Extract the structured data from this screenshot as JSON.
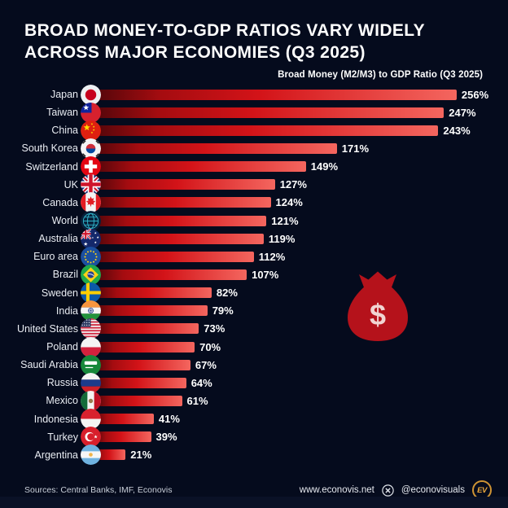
{
  "title": {
    "line1": "BROAD MONEY-TO-GDP RATIOS VARY WIDELY",
    "line2": "ACROSS MAJOR ECONOMIES (Q3 2025)"
  },
  "subtitle": "Broad Money (M2/M3) to GDP Ratio (Q3 2025)",
  "chart_data": {
    "type": "bar",
    "orientation": "horizontal",
    "title": "Broad Money (M2/M3) to GDP Ratio (Q3 2025)",
    "categories": [
      "Japan",
      "Taiwan",
      "China",
      "South Korea",
      "Switzerland",
      "UK",
      "Canada",
      "World",
      "Australia",
      "Euro area",
      "Brazil",
      "Sweden",
      "India",
      "United States",
      "Poland",
      "Saudi Arabia",
      "Russia",
      "Mexico",
      "Indonesia",
      "Turkey",
      "Argentina"
    ],
    "values": [
      256,
      247,
      243,
      171,
      149,
      127,
      124,
      121,
      119,
      112,
      107,
      82,
      79,
      73,
      70,
      67,
      64,
      61,
      41,
      39,
      21
    ],
    "flags": [
      "japan",
      "taiwan",
      "china",
      "south-korea",
      "switzerland",
      "uk",
      "canada",
      "world",
      "australia",
      "euro-area",
      "brazil",
      "sweden",
      "india",
      "united-states",
      "poland",
      "saudi-arabia",
      "russia",
      "mexico",
      "indonesia",
      "turkey",
      "argentina"
    ],
    "value_suffix": "%",
    "xlim": [
      0,
      256
    ],
    "grid": false,
    "legend": "none",
    "bar_gradient": [
      "#55060a",
      "#a50c10",
      "#d31318",
      "#f4665f"
    ]
  },
  "decorations": {
    "money_bag_icon": "money-bag-icon",
    "dollar_sign": "$"
  },
  "footer": {
    "sources": "Sources: Central Banks, IMF, Econovis",
    "website": "www.econovis.net",
    "handle": "@econovisuals",
    "logo_text": "EV"
  },
  "colors": {
    "background": "#050b1d",
    "bar_start": "#55060a",
    "bar_end": "#f4665f",
    "bag_red": "#b5121b",
    "accent_gold": "#eda93c",
    "text": "#ffffff"
  }
}
